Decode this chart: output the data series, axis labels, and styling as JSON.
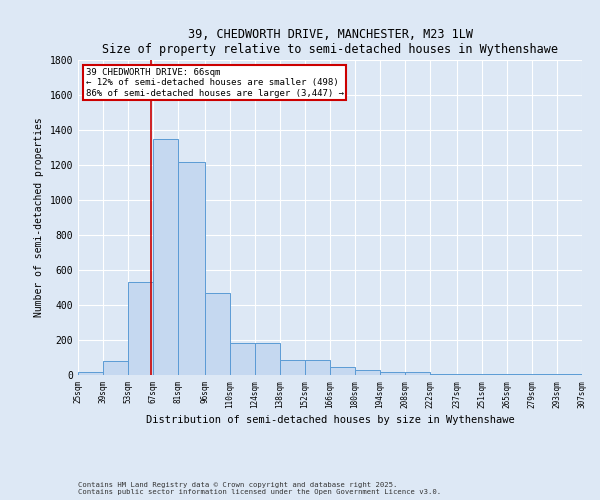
{
  "title": "39, CHEDWORTH DRIVE, MANCHESTER, M23 1LW",
  "subtitle": "Size of property relative to semi-detached houses in Wythenshawe",
  "xlabel": "Distribution of semi-detached houses by size in Wythenshawe",
  "ylabel": "Number of semi-detached properties",
  "footnote1": "Contains HM Land Registry data © Crown copyright and database right 2025.",
  "footnote2": "Contains public sector information licensed under the Open Government Licence v3.0.",
  "bins": [
    25,
    39,
    53,
    67,
    81,
    96,
    110,
    124,
    138,
    152,
    166,
    180,
    194,
    208,
    222,
    237,
    251,
    265,
    279,
    293,
    307
  ],
  "bar_heights": [
    15,
    80,
    530,
    1350,
    1220,
    470,
    185,
    185,
    85,
    85,
    45,
    30,
    20,
    15,
    5,
    5,
    5,
    5,
    5,
    5
  ],
  "bar_color": "#c5d8f0",
  "bar_edge_color": "#5b9bd5",
  "vline_x": 66,
  "vline_color": "#cc0000",
  "annotation_title": "39 CHEDWORTH DRIVE: 66sqm",
  "annotation_line1": "← 12% of semi-detached houses are smaller (498)",
  "annotation_line2": "86% of semi-detached houses are larger (3,447) →",
  "annotation_box_color": "#ffffff",
  "annotation_box_edge": "#cc0000",
  "ylim": [
    0,
    1800
  ],
  "yticks": [
    0,
    200,
    400,
    600,
    800,
    1000,
    1200,
    1400,
    1600,
    1800
  ],
  "bg_color": "#dde8f5",
  "plot_bg_color": "#dde8f5",
  "grid_color": "#ffffff"
}
